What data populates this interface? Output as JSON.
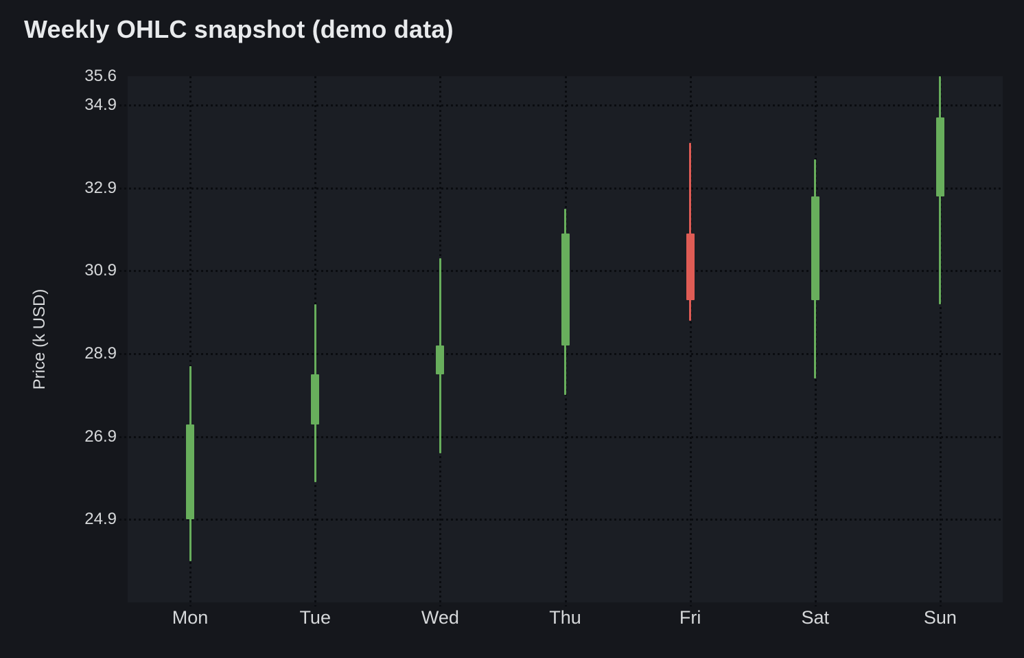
{
  "chart_data": {
    "type": "candlestick",
    "title": "Weekly OHLC snapshot (demo data)",
    "xlabel": "",
    "ylabel": "Price (k USD)",
    "categories": [
      "Mon",
      "Tue",
      "Wed",
      "Thu",
      "Fri",
      "Sat",
      "Sun"
    ],
    "ohlc": [
      {
        "day": "Mon",
        "open": 24.9,
        "high": 28.6,
        "low": 23.9,
        "close": 27.2,
        "direction": "up"
      },
      {
        "day": "Tue",
        "open": 27.2,
        "high": 30.1,
        "low": 25.8,
        "close": 28.4,
        "direction": "up"
      },
      {
        "day": "Wed",
        "open": 28.4,
        "high": 31.2,
        "low": 26.5,
        "close": 29.1,
        "direction": "up"
      },
      {
        "day": "Thu",
        "open": 29.1,
        "high": 32.4,
        "low": 27.9,
        "close": 31.8,
        "direction": "up"
      },
      {
        "day": "Fri",
        "open": 31.8,
        "high": 34.0,
        "low": 29.7,
        "close": 30.2,
        "direction": "down"
      },
      {
        "day": "Sat",
        "open": 30.2,
        "high": 33.6,
        "low": 28.3,
        "close": 32.7,
        "direction": "up"
      },
      {
        "day": "Sun",
        "open": 32.7,
        "high": 35.6,
        "low": 30.1,
        "close": 34.6,
        "direction": "up"
      }
    ],
    "y_ticks": [
      "35.6",
      "34.9",
      "32.9",
      "30.9",
      "28.9",
      "26.9",
      "24.9"
    ],
    "ylim": [
      22.9,
      35.6
    ],
    "grid": "dotted horizontal lines at labeled ticks and dotted vertical lines at each weekday",
    "legend": "none",
    "colors": {
      "up": "#68ae5c",
      "down": "#df5c55",
      "page_background": "#15171c",
      "plot_background": "#1b1e24",
      "gridline": "#0a0c10",
      "title_text": "#e8eaec",
      "tick_text": "#d6d8da"
    }
  }
}
